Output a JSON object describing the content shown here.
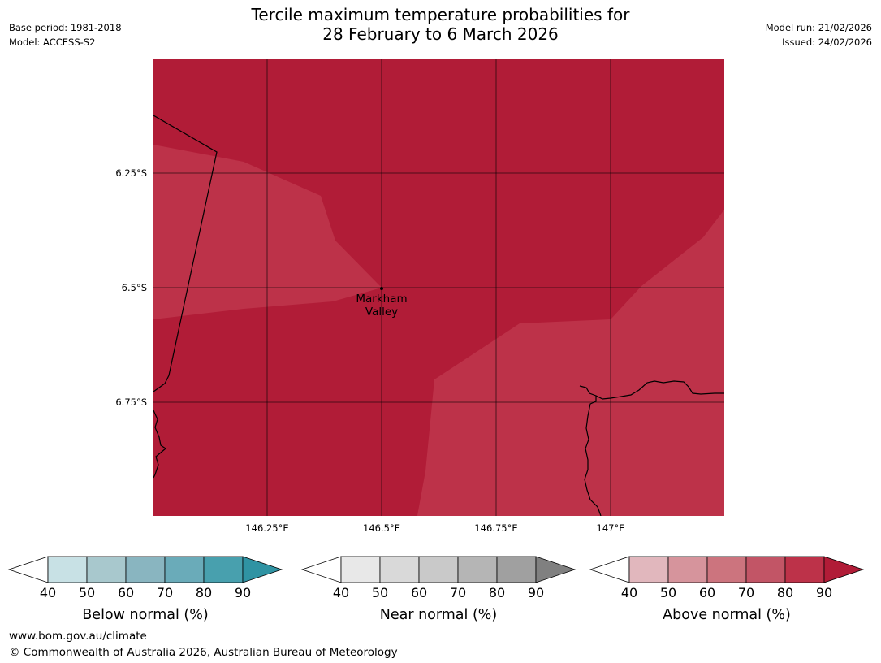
{
  "header": {
    "base_period": "Base period: 1981-2018",
    "model": "Model: ACCESS-S2",
    "title_line1": "Tercile maximum temperature probabilities for",
    "title_line2": "28 February to 6 March 2026",
    "model_run": "Model run: 21/02/2026",
    "issued": "Issued: 24/02/2026"
  },
  "map": {
    "lat_labels": [
      "6.25°S",
      "6.5°S",
      "6.75°S"
    ],
    "lon_labels": [
      "146.25°E",
      "146.5°E",
      "146.75°E",
      "147°E"
    ],
    "place": {
      "line1": "Markham",
      "line2": "Valley"
    },
    "colors": {
      "above_80_90": "#b11c37",
      "above_70_80": "#bd3249",
      "grid": "#000000",
      "coast": "#000000"
    }
  },
  "colorbars": [
    {
      "title": "Below normal (%)",
      "ticks": [
        "40",
        "50",
        "60",
        "70",
        "80",
        "90"
      ],
      "colors": [
        "#c8e1e5",
        "#a8c8cd",
        "#89b5c0",
        "#6aabb9",
        "#48a0ae"
      ],
      "under": "#ffffff",
      "over": "#2f93a3"
    },
    {
      "title": "Near normal (%)",
      "ticks": [
        "40",
        "50",
        "60",
        "70",
        "80",
        "90"
      ],
      "colors": [
        "#e8e8e8",
        "#d9d9d9",
        "#c9c9c9",
        "#b5b5b5",
        "#a0a0a0"
      ],
      "under": "#ffffff",
      "over": "#808080"
    },
    {
      "title": "Above normal (%)",
      "ticks": [
        "40",
        "50",
        "60",
        "70",
        "80",
        "90"
      ],
      "colors": [
        "#e1b7bd",
        "#d6949c",
        "#cc747e",
        "#c25566",
        "#bd3249"
      ],
      "under": "#ffffff",
      "over": "#b11c37"
    }
  ],
  "footer": {
    "url": "www.bom.gov.au/climate",
    "copyright": "© Commonwealth of Australia 2026, Australian Bureau of Meteorology"
  }
}
